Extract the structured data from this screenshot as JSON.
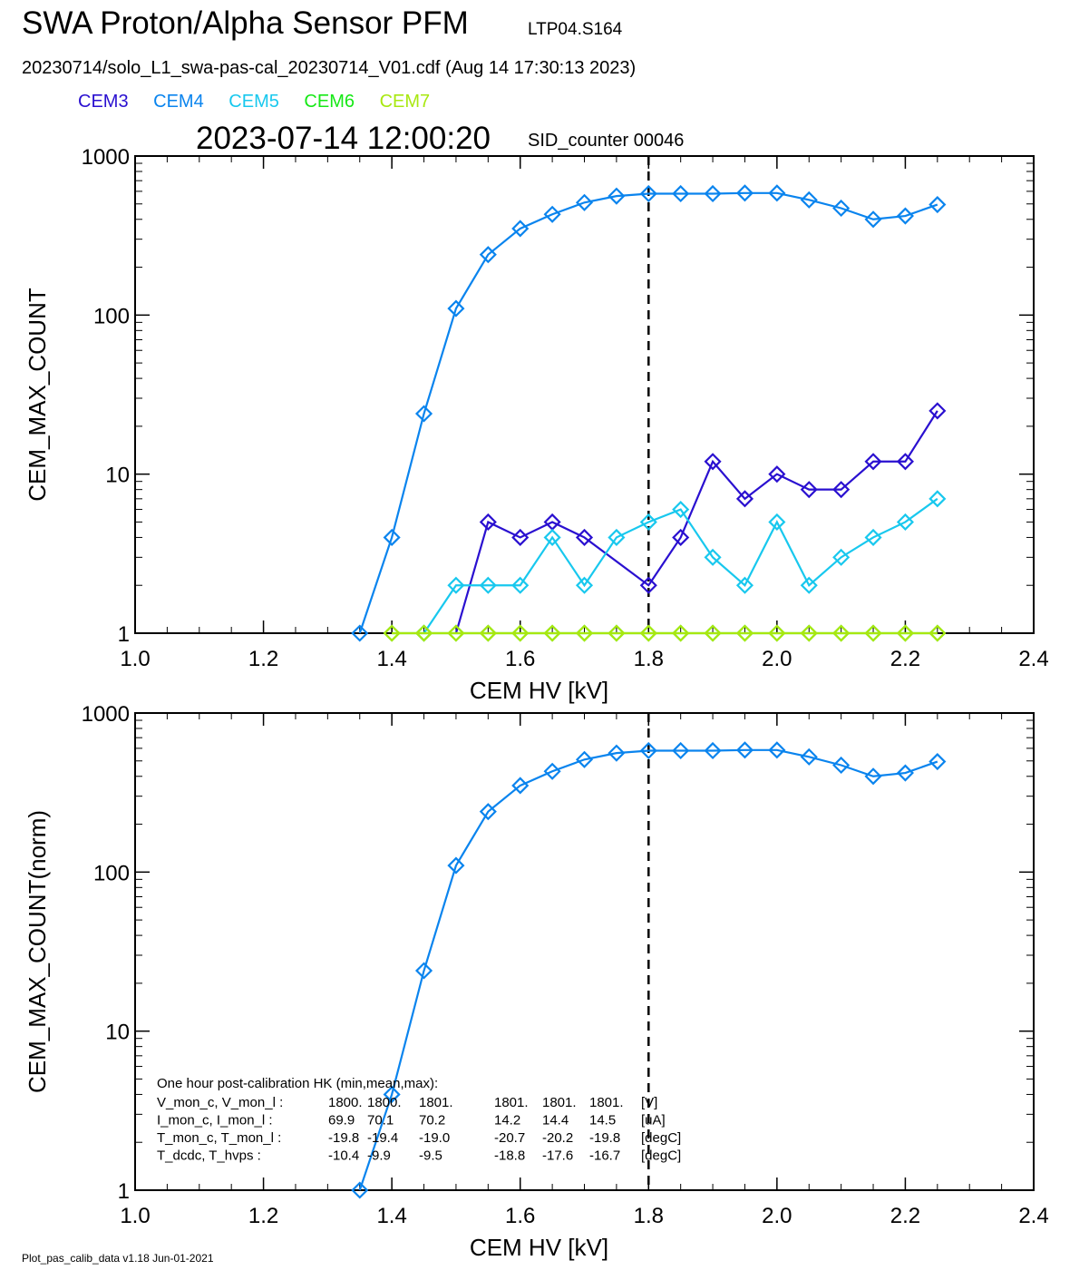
{
  "header": {
    "title": "SWA Proton/Alpha Sensor PFM",
    "subtitle": "LTP04.S164",
    "file_line": "20230714/solo_L1_swa-pas-cal_20230714_V01.cdf  (Aug 14 17:30:13 2023)",
    "timestamp": "2023-07-14 12:00:20",
    "sid_counter": "SID_counter 00046"
  },
  "legend": [
    {
      "name": "CEM3",
      "color": "#2a10d0"
    },
    {
      "name": "CEM4",
      "color": "#0a84ee"
    },
    {
      "name": "CEM5",
      "color": "#18c8ee"
    },
    {
      "name": "CEM6",
      "color": "#16e816"
    },
    {
      "name": "CEM7",
      "color": "#a8e810"
    }
  ],
  "footer": "Plot_pas_calib_data v1.18 Jun-01-2021",
  "chart_data": [
    {
      "type": "line",
      "xlabel": "CEM HV [kV]",
      "ylabel": "CEM_MAX_COUNT",
      "xlim": [
        1.0,
        2.4
      ],
      "ylim": [
        1,
        1000
      ],
      "yscale": "log",
      "xticks": [
        "1.0",
        "1.2",
        "1.4",
        "1.6",
        "1.8",
        "2.0",
        "2.2",
        "2.4"
      ],
      "yticks": [
        "1",
        "10",
        "100",
        "1000"
      ],
      "vline": 1.8,
      "series": [
        {
          "name": "CEM3",
          "color": "#2a10d0",
          "x": [
            1.55,
            1.6,
            1.65,
            1.7,
            1.8,
            1.85,
            1.9,
            1.95,
            2.0,
            2.05,
            2.1,
            2.15,
            2.2,
            2.25
          ],
          "y": [
            5,
            4,
            5,
            4,
            2,
            4,
            12,
            7,
            10,
            8,
            8,
            12,
            12,
            25
          ],
          "line_from": [
            1.5,
            1
          ]
        },
        {
          "name": "CEM4",
          "color": "#0a84ee",
          "x": [
            1.35,
            1.4,
            1.45,
            1.5,
            1.55,
            1.6,
            1.65,
            1.7,
            1.75,
            1.8,
            1.85,
            1.9,
            1.95,
            2.0,
            2.05,
            2.1,
            2.15,
            2.2,
            2.25
          ],
          "y": [
            1,
            4,
            24,
            110,
            240,
            350,
            430,
            510,
            560,
            580,
            580,
            580,
            585,
            585,
            530,
            470,
            400,
            420,
            495
          ]
        },
        {
          "name": "CEM5",
          "color": "#18c8ee",
          "x": [
            1.45,
            1.5,
            1.55,
            1.6,
            1.65,
            1.7,
            1.75,
            1.8,
            1.85,
            1.9,
            1.95,
            2.0,
            2.05,
            2.1,
            2.15,
            2.2,
            2.25
          ],
          "y": [
            1,
            2,
            2,
            2,
            4,
            2,
            4,
            5,
            6,
            3,
            2,
            5,
            2,
            3,
            4,
            5,
            7
          ]
        },
        {
          "name": "CEM6",
          "color": "#16e816",
          "x": [
            1.4,
            1.45,
            1.5,
            1.55,
            1.6,
            1.65,
            1.7,
            1.75,
            1.8,
            1.85,
            1.9,
            1.95,
            2.0,
            2.05,
            2.1,
            2.15,
            2.2,
            2.25
          ],
          "y": [
            1,
            1,
            1,
            1,
            1,
            1,
            1,
            1,
            1,
            1,
            1,
            1,
            1,
            1,
            1,
            1,
            1,
            1
          ]
        },
        {
          "name": "CEM7",
          "color": "#a8e810",
          "x": [
            1.4,
            1.45,
            1.5,
            1.55,
            1.6,
            1.65,
            1.7,
            1.75,
            1.8,
            1.85,
            1.9,
            1.95,
            2.0,
            2.05,
            2.1,
            2.15,
            2.2,
            2.25
          ],
          "y": [
            1,
            1,
            1,
            1,
            1,
            1,
            1,
            1,
            1,
            1,
            1,
            1,
            1,
            1,
            1,
            1,
            1,
            1
          ]
        }
      ]
    },
    {
      "type": "line",
      "xlabel": "CEM HV [kV]",
      "ylabel": "CEM_MAX_COUNT(norm)",
      "xlim": [
        1.0,
        2.4
      ],
      "ylim": [
        1,
        1000
      ],
      "yscale": "log",
      "xticks": [
        "1.0",
        "1.2",
        "1.4",
        "1.6",
        "1.8",
        "2.0",
        "2.2",
        "2.4"
      ],
      "yticks": [
        "1",
        "10",
        "100",
        "1000"
      ],
      "vline": 1.8,
      "series": [
        {
          "name": "CEM4",
          "color": "#0a84ee",
          "x": [
            1.35,
            1.4,
            1.45,
            1.5,
            1.55,
            1.6,
            1.65,
            1.7,
            1.75,
            1.8,
            1.85,
            1.9,
            1.95,
            2.0,
            2.05,
            2.1,
            2.15,
            2.2,
            2.25
          ],
          "y": [
            1,
            4,
            24,
            110,
            240,
            350,
            430,
            510,
            560,
            580,
            580,
            580,
            585,
            585,
            530,
            470,
            400,
            420,
            495
          ]
        }
      ],
      "annotation": {
        "heading": "One hour post-calibration HK (min,mean,max):",
        "rows": [
          {
            "label": "V_mon_c, V_mon_l :",
            "a": "1800.",
            "b": "1800.",
            "c": "1801.",
            "d": "1801.",
            "e": "1801.",
            "f": "1801.",
            "unit": "[V]"
          },
          {
            "label": "I_mon_c,  I_mon_l :",
            "a": "69.9",
            "b": "70.1",
            "c": "70.2",
            "d": "14.2",
            "e": "14.4",
            "f": "14.5",
            "unit": "[uA]"
          },
          {
            "label": "T_mon_c, T_mon_l :",
            "a": "-19.8",
            "b": "-19.4",
            "c": "-19.0",
            "d": "-20.7",
            "e": "-20.2",
            "f": "-19.8",
            "unit": "[degC]"
          },
          {
            "label": "T_dcdc,    T_hvps :",
            "a": "-10.4",
            "b": "-9.9",
            "c": "-9.5",
            "d": "-18.8",
            "e": "-17.6",
            "f": "-16.7",
            "unit": "[degC]"
          }
        ]
      }
    }
  ]
}
